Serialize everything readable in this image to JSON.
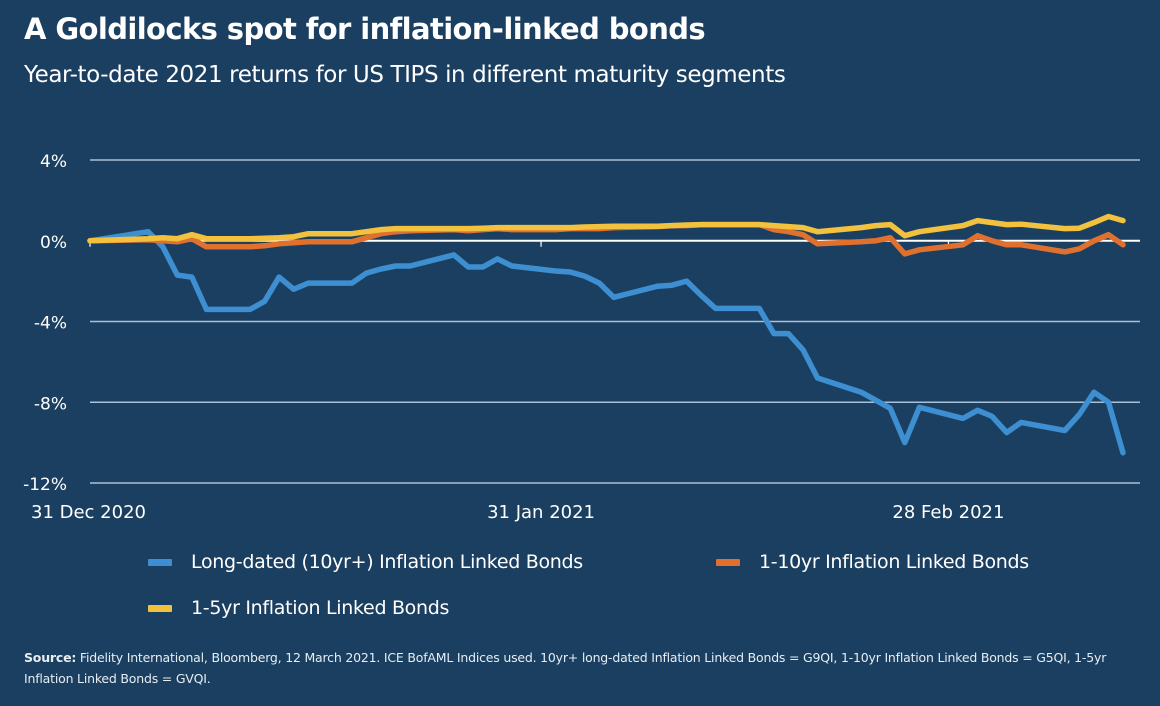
{
  "header": {
    "title": "A Goldilocks spot for inflation-linked bonds",
    "subtitle": "Year-to-date 2021 returns for US TIPS in different maturity segments"
  },
  "legend": [
    {
      "label": "Long-dated (10yr+) Inflation Linked Bonds",
      "color": "#3d8fd1"
    },
    {
      "label": "1-10yr Inflation Linked Bonds",
      "color": "#e0702e"
    },
    {
      "label": "1-5yr Inflation Linked Bonds",
      "color": "#f2c13d"
    }
  ],
  "source": {
    "label": "Source:",
    "text": "Fidelity International, Bloomberg, 12 March 2021. ICE BofAML Indices used. 10yr+ long-dated Inflation Linked Bonds = G9QI, 1-10yr Inflation Linked Bonds = G5QI, 1-5yr Inflation Linked Bonds = GVQI."
  },
  "chart_data": {
    "type": "line",
    "title": "A Goldilocks spot for inflation-linked bonds",
    "subtitle": "Year-to-date 2021 returns for US TIPS in different maturity segments",
    "xlabel": "",
    "ylabel": "",
    "x_unit": "days since 31 Dec 2020",
    "xlim": [
      0,
      72
    ],
    "ylim": [
      -12,
      4
    ],
    "y_ticks": [
      4,
      0,
      -4,
      -8,
      -12
    ],
    "y_tick_labels": [
      "4%",
      "0%",
      "-4%",
      "-8%",
      "-12%"
    ],
    "x_ticks": [
      0,
      31,
      59
    ],
    "x_tick_labels": [
      "31 Dec 2020",
      "31 Jan 2021",
      "28 Feb 2021"
    ],
    "grid": true,
    "legend_position": "bottom",
    "series": [
      {
        "name": "Long-dated (10yr+) Inflation Linked Bonds",
        "color": "#3d8fd1",
        "x": [
          0,
          4,
          5,
          6,
          7,
          8,
          11,
          12,
          13,
          14,
          15,
          18,
          19,
          20,
          21,
          22,
          25,
          26,
          27,
          28,
          29,
          32,
          33,
          34,
          35,
          36,
          39,
          40,
          41,
          42,
          43,
          46,
          47,
          48,
          49,
          50,
          53,
          54,
          55,
          56,
          57,
          60,
          61,
          62,
          63,
          64,
          67,
          68,
          69,
          70,
          71
        ],
        "values": [
          0.0,
          0.45,
          -0.3,
          -1.7,
          -1.8,
          -3.4,
          -3.4,
          -3.0,
          -1.8,
          -2.4,
          -2.1,
          -2.1,
          -1.6,
          -1.4,
          -1.25,
          -1.25,
          -0.7,
          -1.3,
          -1.3,
          -0.9,
          -1.25,
          -1.5,
          -1.55,
          -1.75,
          -2.1,
          -2.8,
          -2.25,
          -2.2,
          -2.0,
          -2.7,
          -3.35,
          -3.35,
          -4.6,
          -4.6,
          -5.4,
          -6.8,
          -7.5,
          -7.9,
          -8.3,
          -10.0,
          -8.25,
          -8.8,
          -8.4,
          -8.7,
          -9.5,
          -9.0,
          -9.4,
          -8.6,
          -7.5,
          -8.0,
          -10.5
        ]
      },
      {
        "name": "1-10yr Inflation Linked Bonds",
        "color": "#e0702e",
        "x": [
          0,
          4,
          5,
          6,
          7,
          8,
          11,
          12,
          13,
          14,
          15,
          18,
          19,
          20,
          21,
          22,
          25,
          26,
          27,
          28,
          29,
          32,
          33,
          34,
          35,
          36,
          39,
          40,
          41,
          42,
          43,
          46,
          47,
          48,
          49,
          50,
          53,
          54,
          55,
          56,
          57,
          60,
          61,
          62,
          63,
          64,
          67,
          68,
          69,
          70,
          71
        ],
        "values": [
          0.0,
          0.05,
          0.0,
          -0.05,
          0.1,
          -0.3,
          -0.3,
          -0.25,
          -0.15,
          -0.1,
          -0.05,
          -0.05,
          0.15,
          0.35,
          0.45,
          0.5,
          0.55,
          0.5,
          0.55,
          0.6,
          0.55,
          0.55,
          0.6,
          0.6,
          0.6,
          0.65,
          0.7,
          0.75,
          0.75,
          0.8,
          0.8,
          0.8,
          0.55,
          0.45,
          0.3,
          -0.15,
          -0.05,
          0.0,
          0.15,
          -0.65,
          -0.45,
          -0.2,
          0.25,
          0.0,
          -0.2,
          -0.2,
          -0.55,
          -0.4,
          0.0,
          0.3,
          -0.2
        ]
      },
      {
        "name": "1-5yr Inflation Linked Bonds",
        "color": "#f2c13d",
        "x": [
          0,
          4,
          5,
          6,
          7,
          8,
          11,
          12,
          13,
          14,
          15,
          18,
          19,
          20,
          21,
          22,
          25,
          26,
          27,
          28,
          29,
          32,
          33,
          34,
          35,
          36,
          39,
          40,
          41,
          42,
          43,
          46,
          47,
          48,
          49,
          50,
          53,
          54,
          55,
          56,
          57,
          60,
          61,
          62,
          63,
          64,
          67,
          68,
          69,
          70,
          71
        ],
        "values": [
          0.0,
          0.1,
          0.15,
          0.1,
          0.3,
          0.1,
          0.1,
          0.12,
          0.15,
          0.2,
          0.35,
          0.35,
          0.45,
          0.55,
          0.6,
          0.6,
          0.6,
          0.6,
          0.62,
          0.65,
          0.65,
          0.65,
          0.65,
          0.68,
          0.7,
          0.72,
          0.72,
          0.75,
          0.78,
          0.8,
          0.8,
          0.8,
          0.75,
          0.7,
          0.65,
          0.45,
          0.65,
          0.75,
          0.8,
          0.25,
          0.45,
          0.75,
          1.0,
          0.9,
          0.8,
          0.82,
          0.6,
          0.62,
          0.9,
          1.2,
          1.0
        ]
      }
    ]
  }
}
